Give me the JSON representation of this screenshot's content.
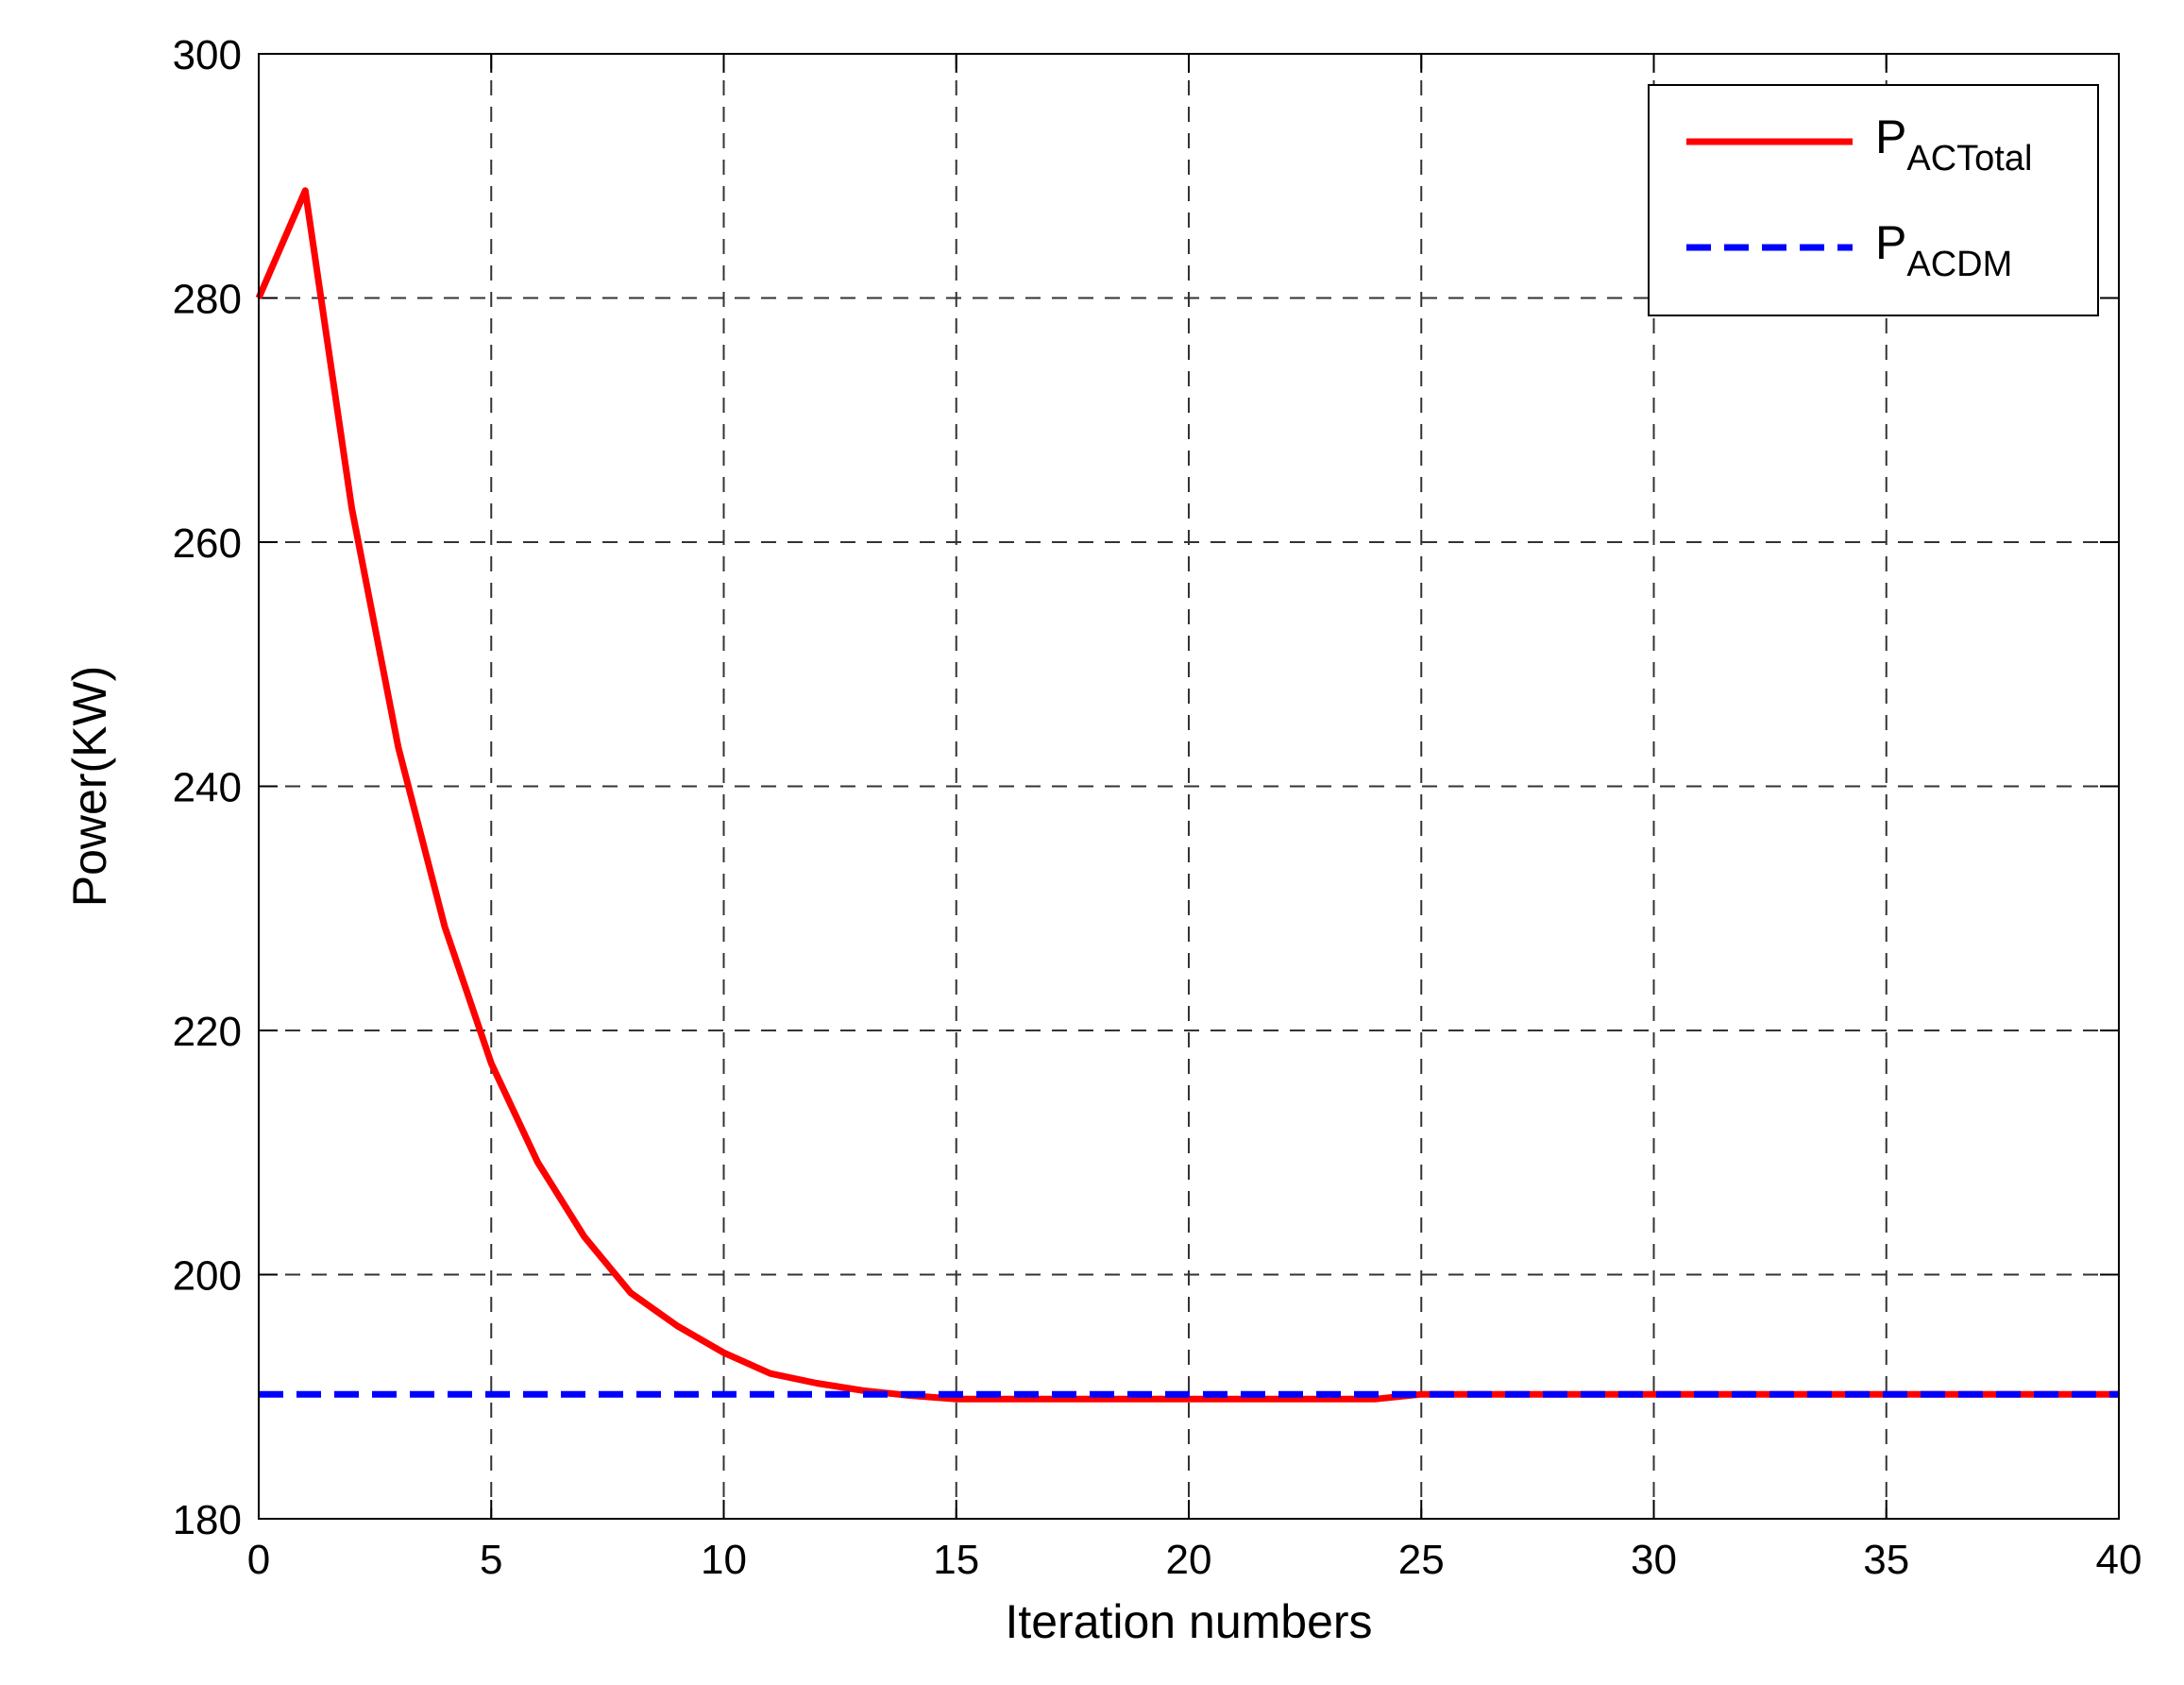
{
  "chart_data": {
    "type": "line",
    "title": "",
    "xlabel": "Iteration numbers",
    "ylabel": "Power(KW)",
    "xlim": [
      0,
      40
    ],
    "ylim": [
      180,
      300
    ],
    "xticks": [
      "0",
      "5",
      "10",
      "15",
      "20",
      "25",
      "30",
      "35",
      "40"
    ],
    "yticks": [
      "180",
      "200",
      "220",
      "240",
      "260",
      "280",
      "300"
    ],
    "grid": true,
    "legend_position": "top-right",
    "series": [
      {
        "name_main": "P",
        "name_sub": "ACTotal",
        "color": "#ff0000",
        "style": "solid",
        "x": [
          0,
          1,
          2,
          3,
          4,
          5,
          6,
          7,
          8,
          9,
          10,
          11,
          12,
          13,
          14,
          15,
          16,
          17,
          18,
          19,
          20,
          21,
          22,
          23,
          24,
          25,
          26,
          27,
          28,
          29,
          30,
          31,
          32,
          33,
          34,
          35,
          36,
          37,
          38,
          39,
          40
        ],
        "y": [
          280,
          288.8,
          262.8,
          243.2,
          228.5,
          217.3,
          209.2,
          203.1,
          198.5,
          195.8,
          193.6,
          191.9,
          191.1,
          190.5,
          190.1,
          189.8,
          189.8,
          189.8,
          189.8,
          189.8,
          189.8,
          189.8,
          189.8,
          189.8,
          189.8,
          190.2,
          190.2,
          190.2,
          190.2,
          190.2,
          190.2,
          190.2,
          190.2,
          190.2,
          190.2,
          190.2,
          190.2,
          190.2,
          190.2,
          190.2,
          190.2
        ]
      },
      {
        "name_main": "P",
        "name_sub": "ACDM",
        "color": "#0000ff",
        "style": "dashed",
        "x": [
          0,
          40
        ],
        "y": [
          190.2,
          190.2
        ]
      }
    ]
  }
}
